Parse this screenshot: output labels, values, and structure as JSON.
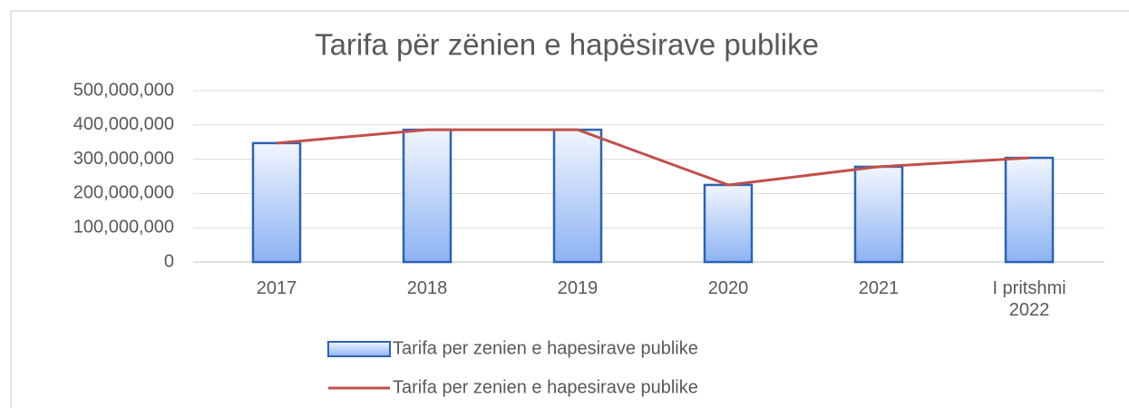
{
  "chart_data": {
    "type": "bar",
    "title": "Tarifa për zënien  e hapësirave  publike",
    "categories": [
      "2017",
      "2018",
      "2019",
      "2020",
      "2021",
      "I pritshmi 2022"
    ],
    "series": [
      {
        "name": "Tarifa per zenien e hapesirave publike",
        "type": "bar",
        "color": "#2e62b0",
        "values": [
          347000000,
          386000000,
          386000000,
          225000000,
          278000000,
          304000000
        ]
      },
      {
        "name": "Tarifa per zenien e hapesirave publike",
        "type": "line",
        "color": "#c0504d",
        "values": [
          347000000,
          386000000,
          386000000,
          225000000,
          278000000,
          304000000
        ]
      }
    ],
    "ylim": [
      0,
      500000000
    ],
    "yticks": [
      0,
      {
        "value": 100000000,
        "label": "100,000,000"
      },
      {
        "value": 200000000,
        "label": "200,000,000"
      },
      {
        "value": 300000000,
        "label": "300,000,000"
      },
      {
        "value": 400000000,
        "label": "400,000,000"
      },
      {
        "value": 500000000,
        "label": "500,000,000"
      }
    ],
    "grid": true,
    "legend": "bottom"
  }
}
